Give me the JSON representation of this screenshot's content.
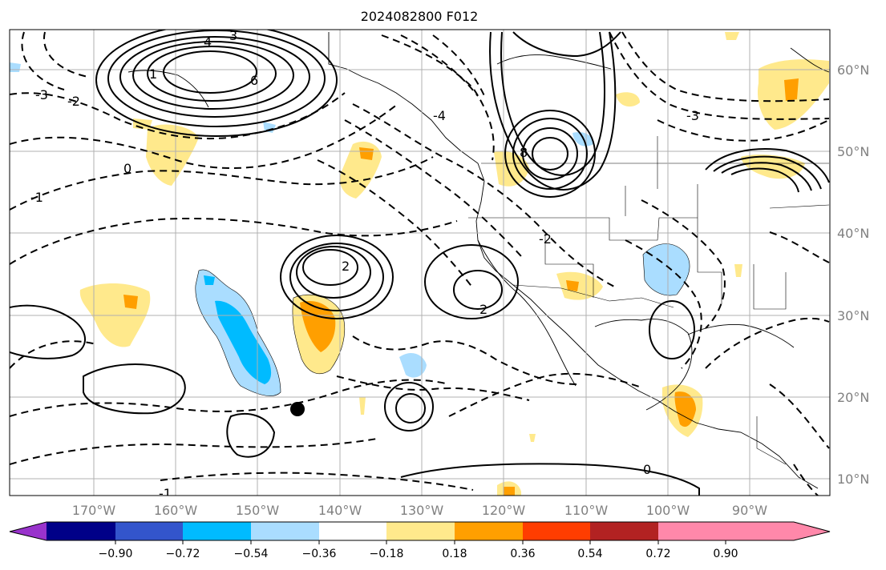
{
  "title": "2024082800 F012",
  "lat_labels": [
    "60°N",
    "50°N",
    "40°N",
    "30°N",
    "20°N",
    "10°N"
  ],
  "lon_labels": [
    "170°W",
    "160°W",
    "150°W",
    "140°W",
    "130°W",
    "120°W",
    "110°W",
    "100°W",
    "90°W"
  ],
  "colorbar": {
    "colors": [
      "#9933cc",
      "#000088",
      "#3355cc",
      "#00bbff",
      "#aaddff",
      "#ffffff",
      "#ffe98c",
      "#ff9f00",
      "#ff3d00",
      "#b22222",
      "#ff88aa"
    ],
    "labels": [
      "−0.90",
      "−0.72",
      "−0.54",
      "−0.36",
      "−0.18",
      "0.18",
      "0.36",
      "0.54",
      "0.72",
      "0.90"
    ]
  },
  "contour_labels": [
    "4",
    "3",
    "6",
    "1",
    "0",
    "-1",
    "-2",
    "-3",
    "2",
    "8",
    "-4",
    "-2",
    "2",
    "0",
    "-1",
    "-3"
  ],
  "marker": "storm-center-dot"
}
